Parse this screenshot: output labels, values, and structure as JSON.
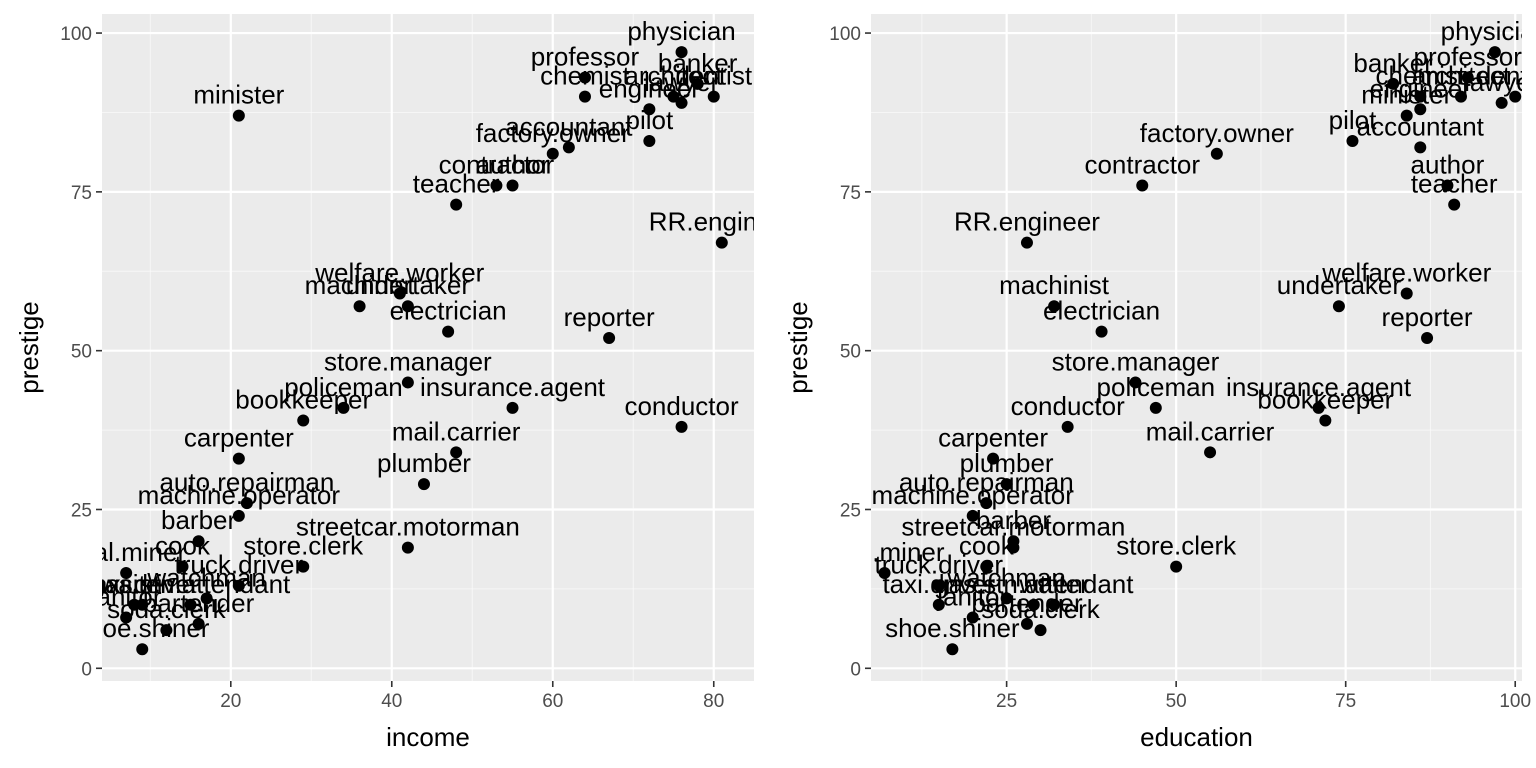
{
  "chart_data": [
    {
      "type": "scatter",
      "xlabel": "income",
      "ylabel": "prestige",
      "xlim": [
        4,
        85
      ],
      "ylim": [
        -2,
        103
      ],
      "x_ticks": [
        20,
        40,
        60,
        80
      ],
      "y_ticks": [
        0,
        25,
        50,
        75,
        100
      ],
      "grid": true,
      "points": [
        {
          "label": "accountant",
          "x": 62,
          "y": 82
        },
        {
          "label": "pilot",
          "x": 72,
          "y": 83
        },
        {
          "label": "architect",
          "x": 75,
          "y": 90
        },
        {
          "label": "author",
          "x": 55,
          "y": 76
        },
        {
          "label": "chemist",
          "x": 64,
          "y": 90
        },
        {
          "label": "minister",
          "x": 21,
          "y": 87
        },
        {
          "label": "professor",
          "x": 64,
          "y": 93
        },
        {
          "label": "dentist",
          "x": 80,
          "y": 90
        },
        {
          "label": "reporter",
          "x": 67,
          "y": 52
        },
        {
          "label": "engineer",
          "x": 72,
          "y": 88
        },
        {
          "label": "undertaker",
          "x": 42,
          "y": 57
        },
        {
          "label": "lawyer",
          "x": 76,
          "y": 89
        },
        {
          "label": "physician",
          "x": 76,
          "y": 97
        },
        {
          "label": "welfare.worker",
          "x": 41,
          "y": 59
        },
        {
          "label": "teacher",
          "x": 48,
          "y": 73
        },
        {
          "label": "conductor",
          "x": 76,
          "y": 38
        },
        {
          "label": "contractor",
          "x": 53,
          "y": 76
        },
        {
          "label": "factory.owner",
          "x": 60,
          "y": 81
        },
        {
          "label": "store.manager",
          "x": 42,
          "y": 45
        },
        {
          "label": "banker",
          "x": 78,
          "y": 92
        },
        {
          "label": "bookkeeper",
          "x": 29,
          "y": 39
        },
        {
          "label": "mail.carrier",
          "x": 48,
          "y": 34
        },
        {
          "label": "insurance.agent",
          "x": 55,
          "y": 41
        },
        {
          "label": "store.clerk",
          "x": 29,
          "y": 16
        },
        {
          "label": "carpenter",
          "x": 21,
          "y": 33
        },
        {
          "label": "electrician",
          "x": 47,
          "y": 53
        },
        {
          "label": "RR.engineer",
          "x": 81,
          "y": 67
        },
        {
          "label": "machinist",
          "x": 36,
          "y": 57
        },
        {
          "label": "auto.repairman",
          "x": 22,
          "y": 26
        },
        {
          "label": "plumber",
          "x": 44,
          "y": 29
        },
        {
          "label": "gas.stn.attendant",
          "x": 15,
          "y": 10
        },
        {
          "label": "coal.miner",
          "x": 7,
          "y": 15
        },
        {
          "label": "streetcar.motorman",
          "x": 42,
          "y": 19
        },
        {
          "label": "taxi.driver",
          "x": 9,
          "y": 10
        },
        {
          "label": "truck.driver",
          "x": 21,
          "y": 13
        },
        {
          "label": "machine.operator",
          "x": 21,
          "y": 24
        },
        {
          "label": "barber",
          "x": 16,
          "y": 20
        },
        {
          "label": "bartender",
          "x": 16,
          "y": 7
        },
        {
          "label": "shoe.shiner",
          "x": 9,
          "y": 3
        },
        {
          "label": "cook",
          "x": 14,
          "y": 16
        },
        {
          "label": "soda.clerk",
          "x": 12,
          "y": 6
        },
        {
          "label": "watchman",
          "x": 17,
          "y": 11
        },
        {
          "label": "janitor",
          "x": 7,
          "y": 8
        },
        {
          "label": "policeman",
          "x": 34,
          "y": 41
        },
        {
          "label": "waiter",
          "x": 8,
          "y": 10
        }
      ]
    },
    {
      "type": "scatter",
      "xlabel": "education",
      "ylabel": "prestige",
      "xlim": [
        5,
        101
      ],
      "ylim": [
        -2,
        103
      ],
      "x_ticks": [
        25,
        50,
        75,
        100
      ],
      "y_ticks": [
        0,
        25,
        50,
        75,
        100
      ],
      "grid": true,
      "points": [
        {
          "label": "accountant",
          "x": 86,
          "y": 82
        },
        {
          "label": "pilot",
          "x": 76,
          "y": 83
        },
        {
          "label": "architect",
          "x": 92,
          "y": 90
        },
        {
          "label": "author",
          "x": 90,
          "y": 76
        },
        {
          "label": "chemist",
          "x": 86,
          "y": 90
        },
        {
          "label": "minister",
          "x": 84,
          "y": 87
        },
        {
          "label": "professor",
          "x": 93,
          "y": 93
        },
        {
          "label": "dentist",
          "x": 100,
          "y": 90
        },
        {
          "label": "reporter",
          "x": 87,
          "y": 52
        },
        {
          "label": "engineer",
          "x": 86,
          "y": 88
        },
        {
          "label": "undertaker",
          "x": 74,
          "y": 57
        },
        {
          "label": "lawyer",
          "x": 98,
          "y": 89
        },
        {
          "label": "physician",
          "x": 97,
          "y": 97
        },
        {
          "label": "welfare.worker",
          "x": 84,
          "y": 59
        },
        {
          "label": "teacher",
          "x": 91,
          "y": 73
        },
        {
          "label": "conductor",
          "x": 34,
          "y": 38
        },
        {
          "label": "contractor",
          "x": 45,
          "y": 76
        },
        {
          "label": "factory.owner",
          "x": 56,
          "y": 81
        },
        {
          "label": "store.manager",
          "x": 44,
          "y": 45
        },
        {
          "label": "banker",
          "x": 82,
          "y": 92
        },
        {
          "label": "bookkeeper",
          "x": 72,
          "y": 39
        },
        {
          "label": "mail.carrier",
          "x": 55,
          "y": 34
        },
        {
          "label": "insurance.agent",
          "x": 71,
          "y": 41
        },
        {
          "label": "store.clerk",
          "x": 50,
          "y": 16
        },
        {
          "label": "carpenter",
          "x": 23,
          "y": 33
        },
        {
          "label": "electrician",
          "x": 39,
          "y": 53
        },
        {
          "label": "RR.engineer",
          "x": 28,
          "y": 67
        },
        {
          "label": "machinist",
          "x": 32,
          "y": 57
        },
        {
          "label": "auto.repairman",
          "x": 22,
          "y": 26
        },
        {
          "label": "plumber",
          "x": 25,
          "y": 29
        },
        {
          "label": "gas.stn.attendant",
          "x": 29,
          "y": 10
        },
        {
          "label": "coal.miner",
          "x": 7,
          "y": 15
        },
        {
          "label": "streetcar.motorman",
          "x": 26,
          "y": 19
        },
        {
          "label": "taxi.driver",
          "x": 15,
          "y": 10
        },
        {
          "label": "truck.driver",
          "x": 15,
          "y": 13
        },
        {
          "label": "machine.operator",
          "x": 20,
          "y": 24
        },
        {
          "label": "barber",
          "x": 26,
          "y": 20
        },
        {
          "label": "bartender",
          "x": 28,
          "y": 7
        },
        {
          "label": "shoe.shiner",
          "x": 17,
          "y": 3
        },
        {
          "label": "cook",
          "x": 22,
          "y": 16
        },
        {
          "label": "soda.clerk",
          "x": 30,
          "y": 6
        },
        {
          "label": "watchman",
          "x": 25,
          "y": 11
        },
        {
          "label": "janitor",
          "x": 20,
          "y": 8
        },
        {
          "label": "policeman",
          "x": 47,
          "y": 41
        },
        {
          "label": "waiter",
          "x": 32,
          "y": 10
        }
      ]
    }
  ]
}
